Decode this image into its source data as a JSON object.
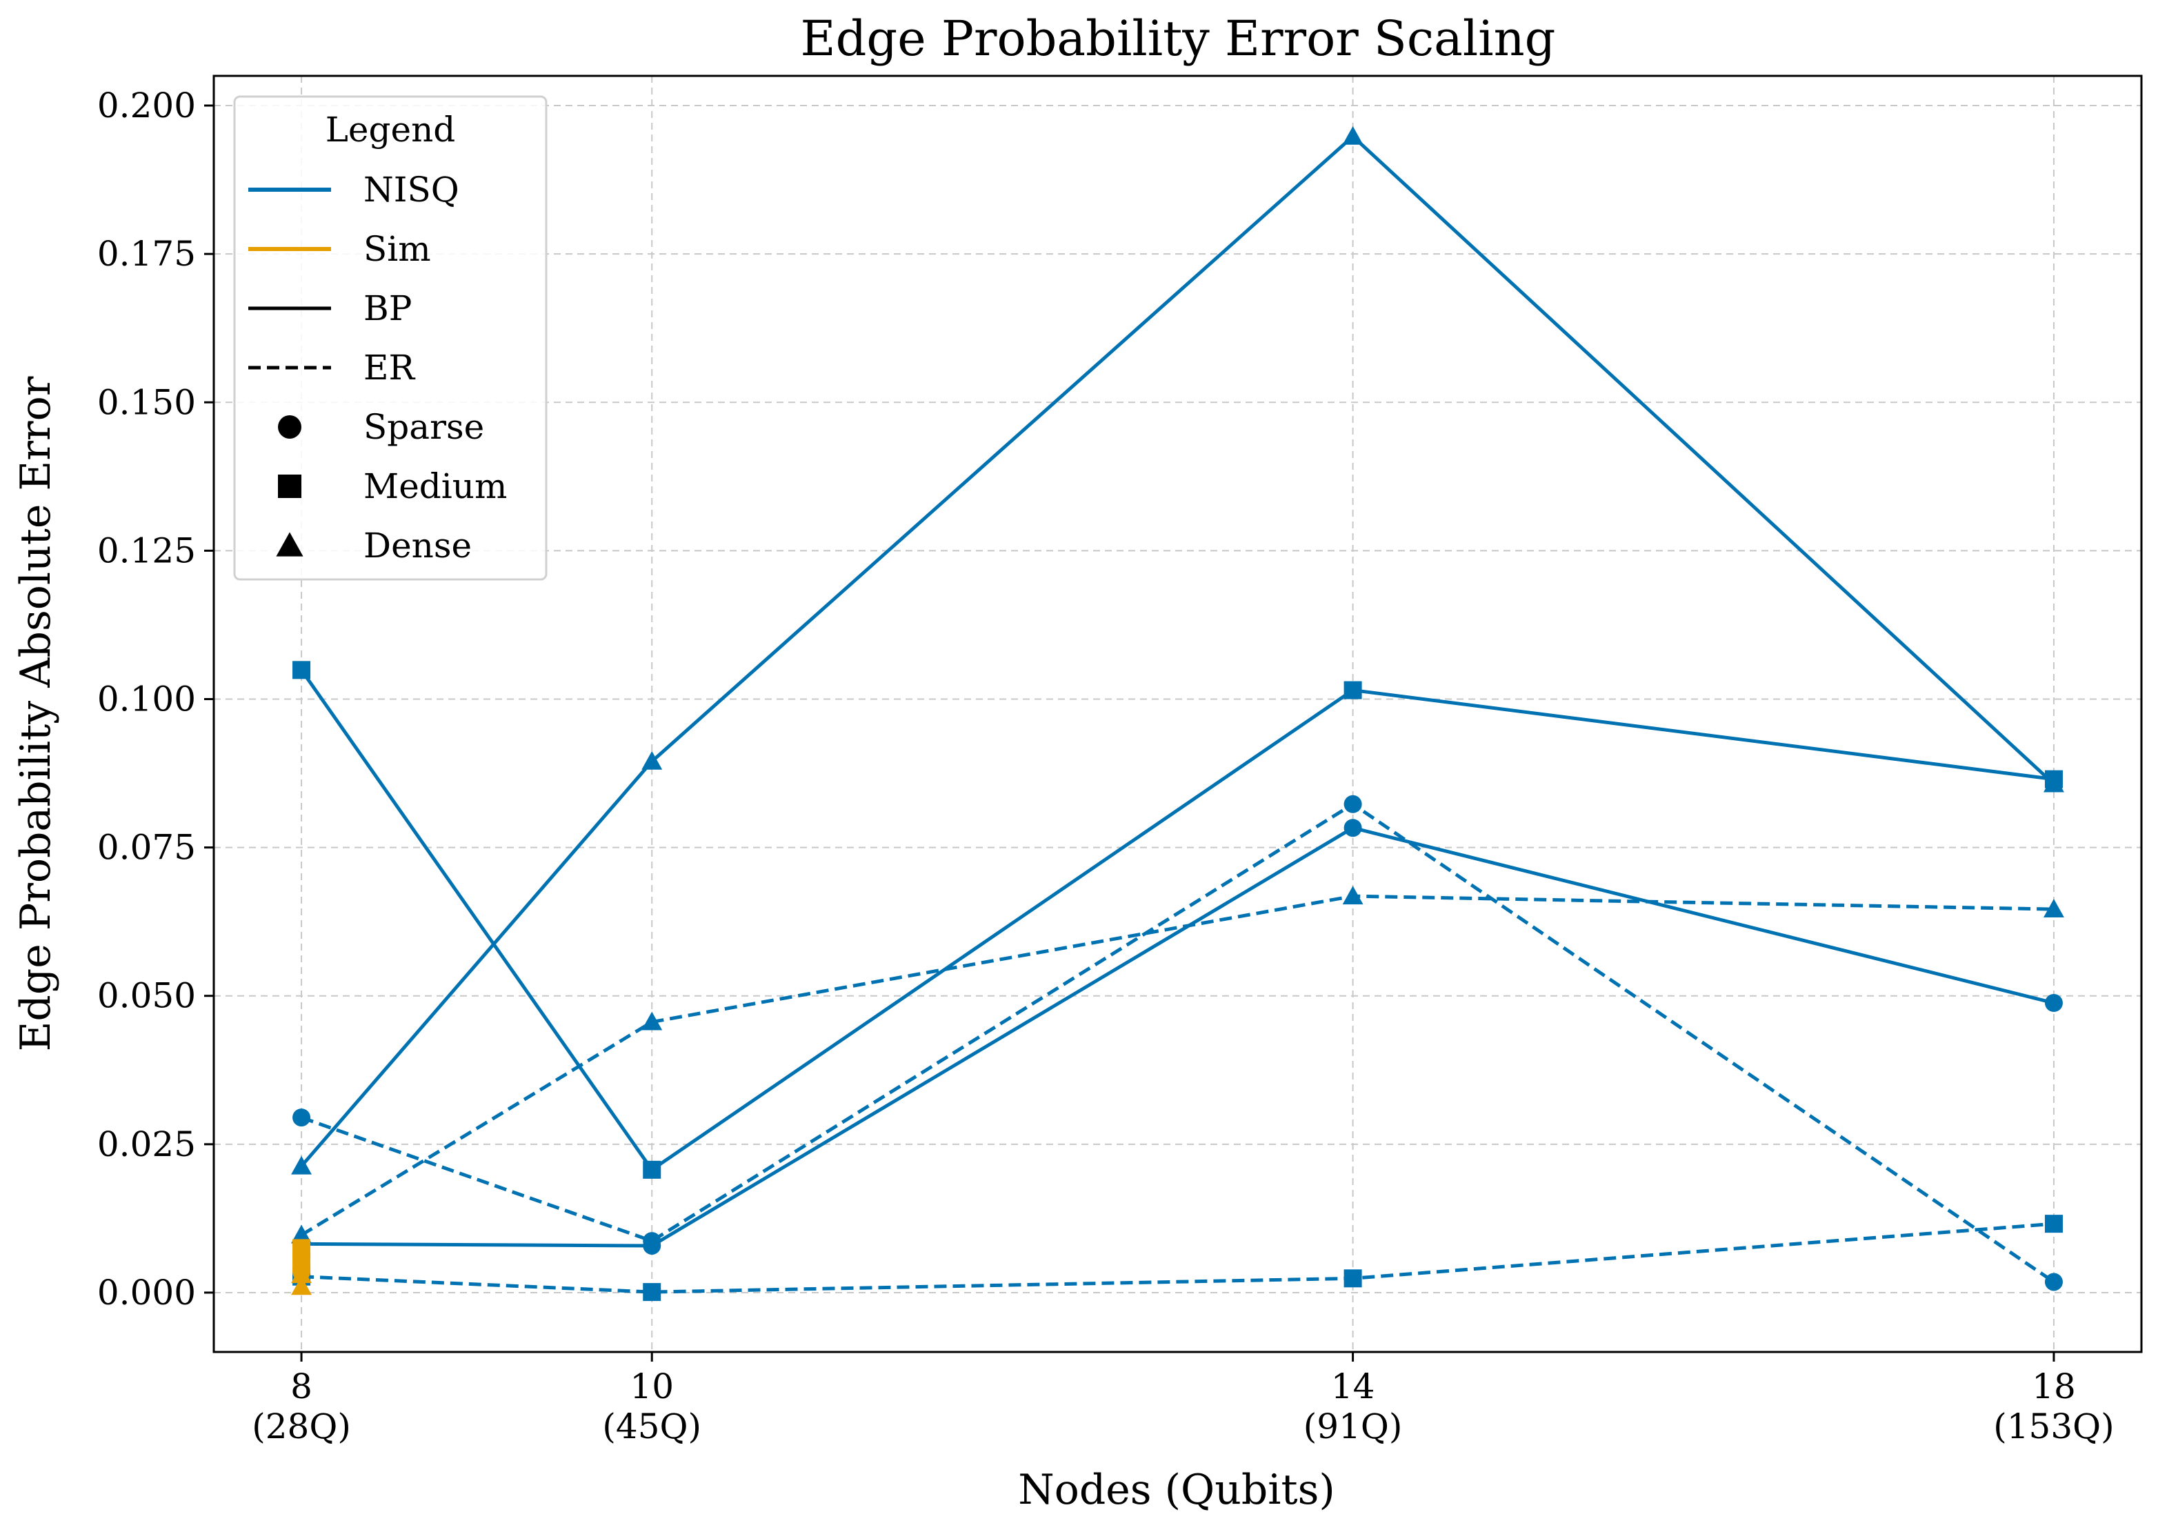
{
  "chart_data": {
    "type": "line",
    "title": "Edge Probability Error Scaling",
    "xlabel": "Nodes (Qubits)",
    "ylabel": "Edge Probability Absolute Error",
    "x": [
      8,
      10,
      14,
      18
    ],
    "x_tick_labels": [
      {
        "top": "8",
        "bottom": "(28Q)"
      },
      {
        "top": "10",
        "bottom": "(45Q)"
      },
      {
        "top": "14",
        "bottom": "(91Q)"
      },
      {
        "top": "18",
        "bottom": "(153Q)"
      }
    ],
    "xlim": [
      7.5,
      18.5
    ],
    "ylim": [
      -0.01,
      0.205
    ],
    "y_ticks": [
      0.0,
      0.025,
      0.05,
      0.075,
      0.1,
      0.125,
      0.15,
      0.175,
      0.2
    ],
    "y_tick_labels": [
      "0.000",
      "0.025",
      "0.050",
      "0.075",
      "0.100",
      "0.125",
      "0.150",
      "0.175",
      "0.200"
    ],
    "grid": true,
    "legend": {
      "title": "Legend",
      "placement": "top-left",
      "entries": [
        {
          "label": "NISQ",
          "kind": "color",
          "color": "#0072b2"
        },
        {
          "label": "Sim",
          "kind": "color",
          "color": "#e69f00"
        },
        {
          "label": "BP",
          "kind": "linestyle",
          "style": "solid"
        },
        {
          "label": "ER",
          "kind": "linestyle",
          "style": "dashed"
        },
        {
          "label": "Sparse",
          "kind": "marker",
          "marker": "circle"
        },
        {
          "label": "Medium",
          "kind": "marker",
          "marker": "square"
        },
        {
          "label": "Dense",
          "kind": "marker",
          "marker": "triangle"
        }
      ]
    },
    "series": [
      {
        "platform": "NISQ",
        "model": "BP",
        "density": "Sparse",
        "color": "#0072b2",
        "linestyle": "solid",
        "marker": "circle",
        "x": [
          8,
          10,
          14,
          18
        ],
        "y": [
          0.0082,
          0.0079,
          0.0783,
          0.0488
        ]
      },
      {
        "platform": "NISQ",
        "model": "BP",
        "density": "Medium",
        "color": "#0072b2",
        "linestyle": "solid",
        "marker": "square",
        "x": [
          8,
          10,
          14,
          18
        ],
        "y": [
          0.1049,
          0.0207,
          0.1015,
          0.0865
        ]
      },
      {
        "platform": "NISQ",
        "model": "BP",
        "density": "Dense",
        "color": "#0072b2",
        "linestyle": "solid",
        "marker": "triangle",
        "x": [
          8,
          10,
          14,
          18
        ],
        "y": [
          0.0213,
          0.0895,
          0.1948,
          0.0857
        ]
      },
      {
        "platform": "NISQ",
        "model": "ER",
        "density": "Sparse",
        "color": "#0072b2",
        "linestyle": "dashed",
        "marker": "circle",
        "x": [
          8,
          10,
          14,
          18
        ],
        "y": [
          0.0295,
          0.0087,
          0.0823,
          0.0018
        ]
      },
      {
        "platform": "NISQ",
        "model": "ER",
        "density": "Medium",
        "color": "#0072b2",
        "linestyle": "dashed",
        "marker": "square",
        "x": [
          8,
          10,
          14,
          18
        ],
        "y": [
          0.0027,
          0.0001,
          0.0024,
          0.0116
        ]
      },
      {
        "platform": "NISQ",
        "model": "ER",
        "density": "Dense",
        "color": "#0072b2",
        "linestyle": "dashed",
        "marker": "triangle",
        "x": [
          8,
          10,
          14,
          18
        ],
        "y": [
          0.0097,
          0.0456,
          0.0668,
          0.0646
        ]
      },
      {
        "platform": "Sim",
        "model": "BP",
        "density": "Sparse",
        "color": "#e69f00",
        "linestyle": "solid",
        "marker": "circle",
        "x": [
          8
        ],
        "y": [
          0.005
        ]
      },
      {
        "platform": "Sim",
        "model": "BP",
        "density": "Medium",
        "color": "#e69f00",
        "linestyle": "solid",
        "marker": "square",
        "x": [
          8
        ],
        "y": [
          0.0075
        ]
      },
      {
        "platform": "Sim",
        "model": "BP",
        "density": "Dense",
        "color": "#e69f00",
        "linestyle": "solid",
        "marker": "triangle",
        "x": [
          8
        ],
        "y": [
          0.003
        ]
      },
      {
        "platform": "Sim",
        "model": "ER",
        "density": "Sparse",
        "color": "#e69f00",
        "linestyle": "dashed",
        "marker": "circle",
        "x": [
          8
        ],
        "y": [
          0.0035
        ]
      },
      {
        "platform": "Sim",
        "model": "ER",
        "density": "Medium",
        "color": "#e69f00",
        "linestyle": "dashed",
        "marker": "square",
        "x": [
          8
        ],
        "y": [
          0.005
        ]
      },
      {
        "platform": "Sim",
        "model": "ER",
        "density": "Dense",
        "color": "#e69f00",
        "linestyle": "dashed",
        "marker": "triangle",
        "x": [
          8
        ],
        "y": [
          0.001
        ]
      }
    ]
  }
}
